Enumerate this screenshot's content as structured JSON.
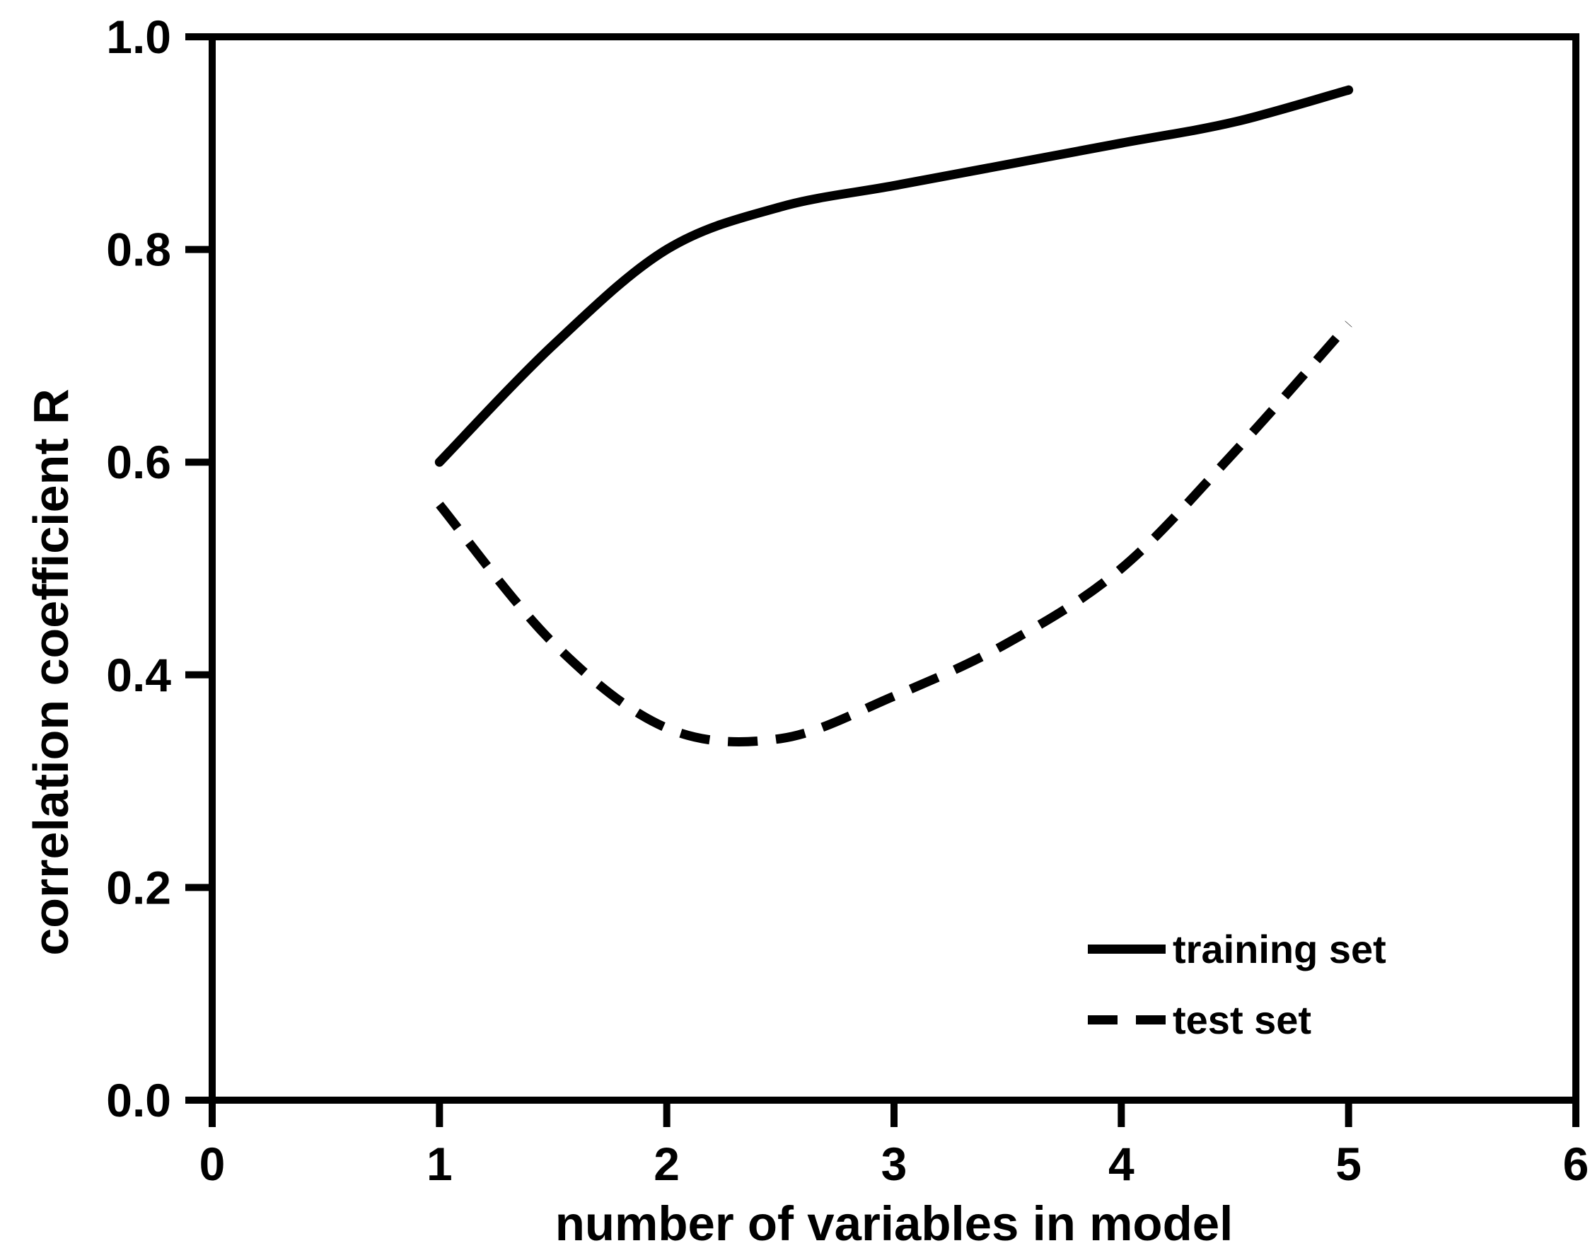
{
  "figure": {
    "background_color": "#ffffff",
    "line_color": "#000000"
  },
  "chart_data": {
    "type": "line",
    "title": "",
    "xlabel": "number of variables in model",
    "ylabel": "correlation coefficient R",
    "xlim": [
      0,
      6
    ],
    "ylim": [
      0.0,
      1.0
    ],
    "x_ticks": [
      0,
      1,
      2,
      3,
      4,
      5,
      6
    ],
    "x_tick_labels": [
      "0",
      "1",
      "2",
      "3",
      "4",
      "5",
      "6"
    ],
    "y_ticks": [
      0.0,
      0.2,
      0.4,
      0.6,
      0.8,
      1.0
    ],
    "y_tick_labels": [
      "0.0",
      "0.2",
      "0.4",
      "0.6",
      "0.8",
      "1.0"
    ],
    "grid": false,
    "legend_position": "inside lower right",
    "series": [
      {
        "name": "training set",
        "line_style": "solid",
        "x": [
          1,
          1.5,
          2,
          2.5,
          3,
          3.5,
          4,
          4.5,
          5
        ],
        "y": [
          0.6,
          0.71,
          0.8,
          0.84,
          0.86,
          0.88,
          0.9,
          0.92,
          0.95
        ]
      },
      {
        "name": "test set",
        "line_style": "dashed",
        "x": [
          1,
          1.5,
          2,
          2.5,
          3,
          3.5,
          4,
          4.5,
          5
        ],
        "y": [
          0.56,
          0.43,
          0.35,
          0.34,
          0.38,
          0.43,
          0.5,
          0.61,
          0.73
        ]
      }
    ]
  }
}
